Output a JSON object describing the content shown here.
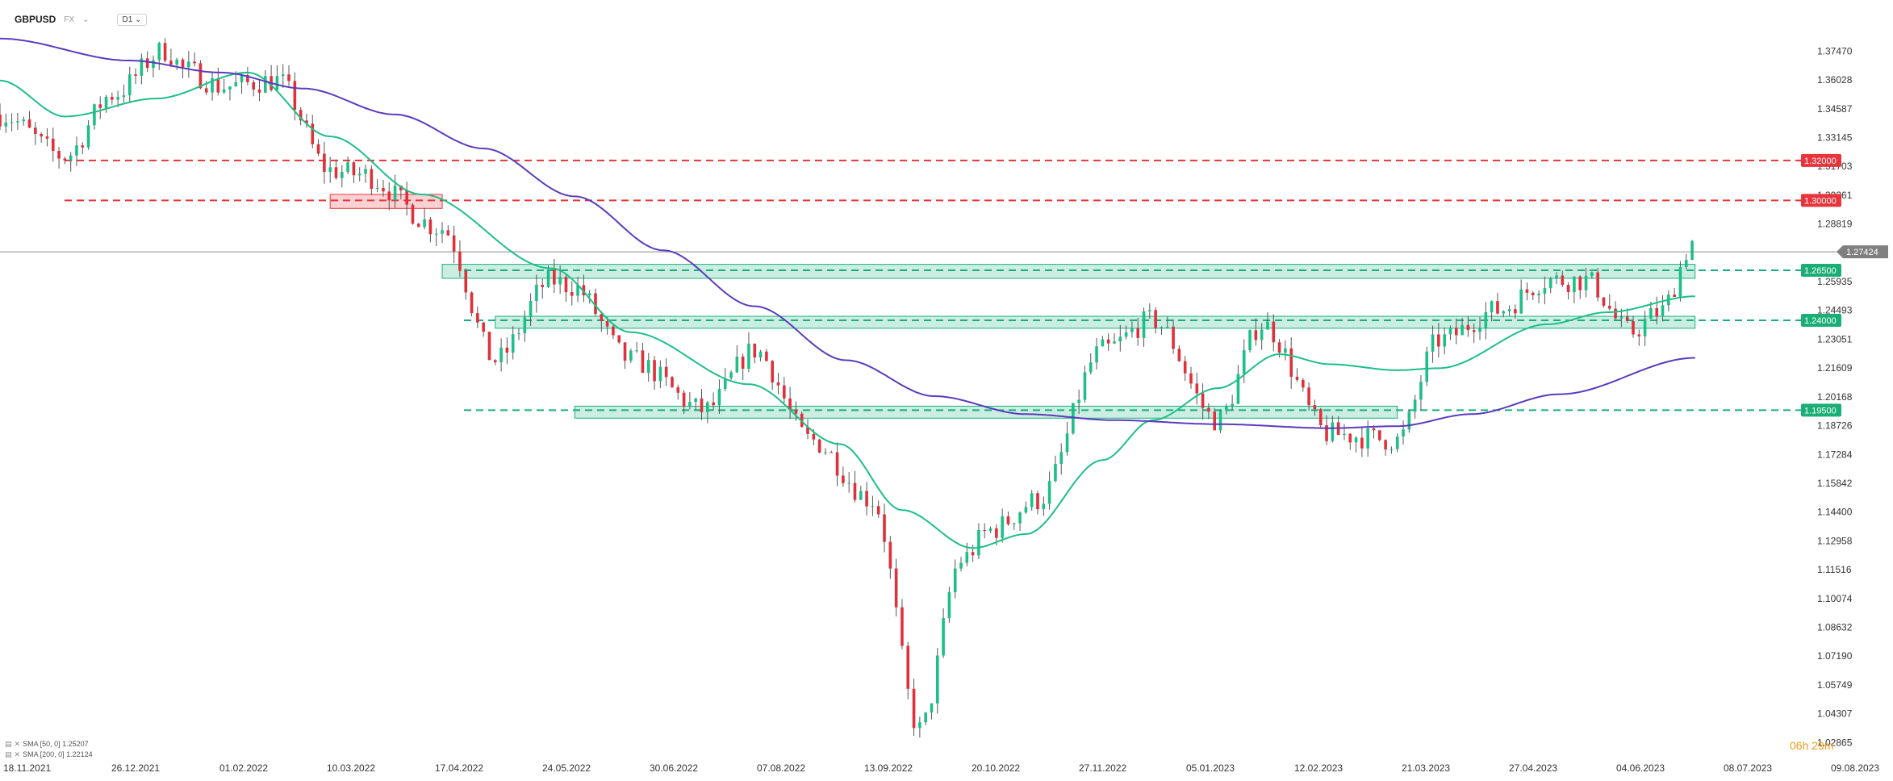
{
  "header": {
    "symbol": "GBPUSD",
    "market": "FX",
    "timeframe": "D1"
  },
  "indicators": [
    {
      "label": "SMA [50, 0] 1.25207",
      "color": "#1dbf87"
    },
    {
      "label": "SMA [200, 0] 1.22124",
      "color": "#5b3bbf"
    }
  ],
  "countdown": "06h 29m",
  "colors": {
    "up": "#1dbf87",
    "down": "#e0303a",
    "sma50": "#1dbf87",
    "sma200": "#5b3bbf",
    "resistance": "#e8343a",
    "support": "#16b07c",
    "current": "#8c8c8c"
  },
  "chart_data": {
    "type": "line",
    "title": "",
    "xlabel": "",
    "ylabel": "",
    "ylim": [
      1.0215,
      1.389
    ],
    "xlim": [
      "2021-11-18",
      "2023-08-09"
    ],
    "y_ticks": [
      "1.37470",
      "1.36028",
      "1.34587",
      "1.33145",
      "1.31703",
      "1.30261",
      "1.28819",
      "1.25935",
      "1.24493",
      "1.23051",
      "1.21609",
      "1.20168",
      "1.18726",
      "1.17284",
      "1.15842",
      "1.14400",
      "1.12958",
      "1.11516",
      "1.10074",
      "1.08632",
      "1.07190",
      "1.05749",
      "1.04307",
      "1.02865"
    ],
    "x_ticks": [
      "18.11.2021",
      "26.12.2021",
      "01.02.2022",
      "10.03.2022",
      "17.04.2022",
      "24.05.2022",
      "30.06.2022",
      "07.08.2022",
      "13.09.2022",
      "20.10.2022",
      "27.11.2022",
      "05.01.2023",
      "12.02.2023",
      "21.03.2023",
      "27.04.2023",
      "04.06.2023",
      "08.07.2023",
      "09.08.2023"
    ],
    "series": [
      {
        "name": "GBPUSD",
        "x": [
          "2021-11-18",
          "2021-12-10",
          "2021-12-26",
          "2022-01-13",
          "2022-01-20",
          "2022-02-01",
          "2022-02-20",
          "2022-03-10",
          "2022-03-20",
          "2022-04-17",
          "2022-05-05",
          "2022-05-24",
          "2022-05-31",
          "2022-06-20",
          "2022-07-15",
          "2022-08-01",
          "2022-08-20",
          "2022-09-10",
          "2022-09-26",
          "2022-10-10",
          "2022-10-20",
          "2022-11-05",
          "2022-11-27",
          "2022-12-14",
          "2023-01-05",
          "2023-01-20",
          "2023-02-12",
          "2023-03-07",
          "2023-03-21",
          "2023-04-10",
          "2023-04-27",
          "2023-05-10",
          "2023-05-25",
          "2023-06-04",
          "2023-06-16"
        ],
        "values": [
          1.343,
          1.322,
          1.353,
          1.375,
          1.365,
          1.357,
          1.36,
          1.315,
          1.313,
          1.286,
          1.22,
          1.26,
          1.257,
          1.22,
          1.195,
          1.225,
          1.18,
          1.15,
          1.035,
          1.12,
          1.135,
          1.15,
          1.225,
          1.24,
          1.19,
          1.238,
          1.183,
          1.18,
          1.23,
          1.245,
          1.26,
          1.26,
          1.234,
          1.244,
          1.28
        ]
      },
      {
        "name": "SMA [50, 0]",
        "x": [
          "2021-11-18",
          "2021-12-10",
          "2022-01-10",
          "2022-02-10",
          "2022-03-10",
          "2022-04-10",
          "2022-05-24",
          "2022-06-20",
          "2022-07-30",
          "2022-08-30",
          "2022-09-20",
          "2022-10-14",
          "2022-11-01",
          "2022-11-27",
          "2022-12-14",
          "2023-01-05",
          "2023-01-26",
          "2023-02-12",
          "2023-03-07",
          "2023-03-21",
          "2023-04-27",
          "2023-05-17",
          "2023-06-16"
        ],
        "values": [
          1.36,
          1.342,
          1.351,
          1.364,
          1.332,
          1.303,
          1.266,
          1.234,
          1.208,
          1.178,
          1.145,
          1.126,
          1.133,
          1.17,
          1.19,
          1.206,
          1.223,
          1.218,
          1.215,
          1.216,
          1.238,
          1.244,
          1.252
        ]
      },
      {
        "name": "SMA [200, 0]",
        "x": [
          "2021-11-18",
          "2022-01-01",
          "2022-02-01",
          "2022-03-01",
          "2022-04-01",
          "2022-05-01",
          "2022-06-01",
          "2022-07-01",
          "2022-08-01",
          "2022-09-01",
          "2022-10-01",
          "2022-11-01",
          "2022-12-01",
          "2023-01-05",
          "2023-02-12",
          "2023-03-07",
          "2023-04-01",
          "2023-05-01",
          "2023-06-16"
        ],
        "values": [
          1.381,
          1.37,
          1.364,
          1.356,
          1.343,
          1.326,
          1.302,
          1.275,
          1.247,
          1.22,
          1.202,
          1.193,
          1.19,
          1.188,
          1.186,
          1.187,
          1.193,
          1.203,
          1.2212
        ]
      }
    ],
    "horizontal_levels": [
      {
        "value": 1.32,
        "label": "1.32000",
        "kind": "resistance"
      },
      {
        "value": 1.3,
        "label": "1.30000",
        "kind": "resistance"
      },
      {
        "value": 1.265,
        "label": "1.26500",
        "kind": "support"
      },
      {
        "value": 1.24,
        "label": "1.24000",
        "kind": "support"
      },
      {
        "value": 1.195,
        "label": "1.19500",
        "kind": "support"
      }
    ],
    "zones": [
      {
        "kind": "resistance",
        "from": "2022-03-10",
        "to": "2022-04-17",
        "low": 1.296,
        "high": 1.303
      },
      {
        "kind": "support",
        "from": "2022-04-17",
        "to": "2023-06-16",
        "low": 1.261,
        "high": 1.268
      },
      {
        "kind": "support",
        "from": "2022-05-05",
        "to": "2023-06-16",
        "low": 1.236,
        "high": 1.242
      },
      {
        "kind": "support",
        "from": "2022-06-01",
        "to": "2023-03-07",
        "low": 1.191,
        "high": 1.197
      }
    ],
    "current_price": {
      "value": 1.27424,
      "label": "1.27424"
    },
    "grid": false,
    "legend": "bottom-left"
  }
}
